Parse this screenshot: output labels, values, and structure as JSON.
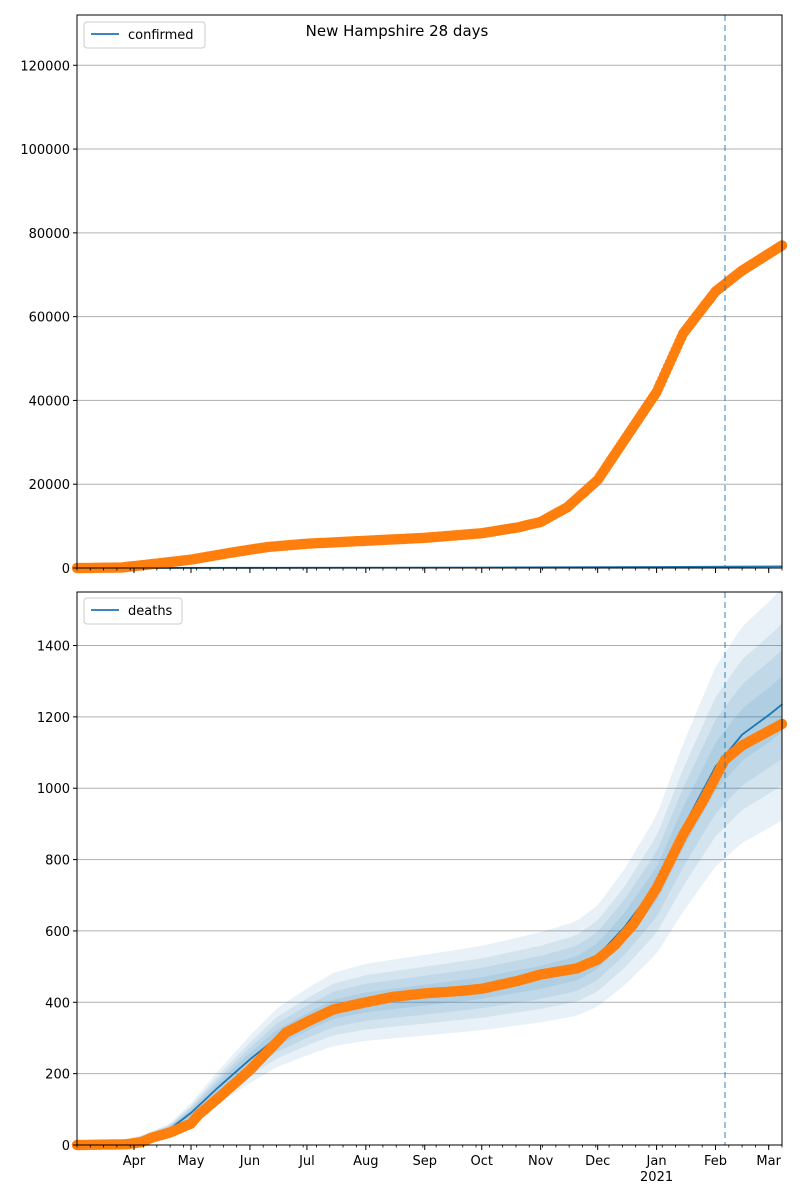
{
  "title": "New Hampshire 28 days",
  "colors": {
    "model": "#1f77b4",
    "observed": "#ff7f0e",
    "band": "#1f77b4",
    "grid": "#b0b0b0"
  },
  "x_axis": {
    "start": "2020-03-02",
    "end": "2021-03-08",
    "months": [
      {
        "label": "Apr",
        "date": "2020-04-01"
      },
      {
        "label": "May",
        "date": "2020-05-01"
      },
      {
        "label": "Jun",
        "date": "2020-06-01"
      },
      {
        "label": "Jul",
        "date": "2020-07-01"
      },
      {
        "label": "Aug",
        "date": "2020-08-01"
      },
      {
        "label": "Sep",
        "date": "2020-09-01"
      },
      {
        "label": "Oct",
        "date": "2020-10-01"
      },
      {
        "label": "Nov",
        "date": "2020-11-01"
      },
      {
        "label": "Dec",
        "date": "2020-12-01"
      },
      {
        "label": "Jan",
        "date": "2021-01-01"
      },
      {
        "label": "Feb",
        "date": "2021-02-01"
      },
      {
        "label": "Mar",
        "date": "2021-03-01"
      }
    ],
    "year_label": {
      "label": "2021",
      "date": "2021-01-01"
    },
    "forecast_marker": "2021-02-06"
  },
  "chart_data": [
    {
      "type": "line",
      "legend": "confirmed",
      "legend_position": "upper-left",
      "grid": true,
      "ylim": [
        0,
        132000
      ],
      "yticks": [
        0,
        20000,
        40000,
        60000,
        80000,
        100000,
        120000
      ],
      "model_series": {
        "name": "confirmed",
        "points": [
          [
            "2020-03-02",
            0
          ],
          [
            "2020-06-01",
            40
          ],
          [
            "2020-10-01",
            120
          ],
          [
            "2021-01-01",
            250
          ],
          [
            "2021-02-06",
            330
          ],
          [
            "2021-03-08",
            380
          ]
        ]
      },
      "observed_series": {
        "points": [
          [
            "2020-03-02",
            0
          ],
          [
            "2020-03-25",
            100
          ],
          [
            "2020-04-10",
            900
          ],
          [
            "2020-05-01",
            2000
          ],
          [
            "2020-05-20",
            3500
          ],
          [
            "2020-06-10",
            5000
          ],
          [
            "2020-07-01",
            5800
          ],
          [
            "2020-08-01",
            6500
          ],
          [
            "2020-09-01",
            7200
          ],
          [
            "2020-10-01",
            8300
          ],
          [
            "2020-10-20",
            9700
          ],
          [
            "2020-11-01",
            11000
          ],
          [
            "2020-11-15",
            14500
          ],
          [
            "2020-12-01",
            21000
          ],
          [
            "2020-12-15",
            30500
          ],
          [
            "2021-01-01",
            42000
          ],
          [
            "2021-01-15",
            56000
          ],
          [
            "2021-02-01",
            66000
          ],
          [
            "2021-02-15",
            71000
          ],
          [
            "2021-03-08",
            77000
          ]
        ]
      }
    },
    {
      "type": "line",
      "legend": "deaths",
      "legend_position": "upper-left",
      "grid": true,
      "ylim": [
        0,
        1550
      ],
      "yticks": [
        0,
        200,
        400,
        600,
        800,
        1000,
        1200,
        1400
      ],
      "model_series": {
        "name": "deaths",
        "points": [
          [
            "2020-03-02",
            0
          ],
          [
            "2020-03-20",
            3
          ],
          [
            "2020-04-05",
            18
          ],
          [
            "2020-04-20",
            45
          ],
          [
            "2020-05-01",
            90
          ],
          [
            "2020-05-15",
            160
          ],
          [
            "2020-06-01",
            240
          ],
          [
            "2020-06-15",
            300
          ],
          [
            "2020-07-01",
            345
          ],
          [
            "2020-07-15",
            380
          ],
          [
            "2020-08-01",
            400
          ],
          [
            "2020-09-01",
            420
          ],
          [
            "2020-10-01",
            440
          ],
          [
            "2020-11-01",
            470
          ],
          [
            "2020-11-20",
            495
          ],
          [
            "2020-12-01",
            530
          ],
          [
            "2020-12-15",
            610
          ],
          [
            "2021-01-01",
            730
          ],
          [
            "2021-01-15",
            890
          ],
          [
            "2021-02-01",
            1060
          ],
          [
            "2021-02-15",
            1150
          ],
          [
            "2021-03-01",
            1205
          ],
          [
            "2021-03-08",
            1235
          ]
        ]
      },
      "band_spread": [
        0.06,
        0.12,
        0.18,
        0.26
      ],
      "observed_series": {
        "points": [
          [
            "2020-03-02",
            0
          ],
          [
            "2020-03-28",
            2
          ],
          [
            "2020-04-05",
            8
          ],
          [
            "2020-04-10",
            20
          ],
          [
            "2020-04-20",
            35
          ],
          [
            "2020-05-01",
            60
          ],
          [
            "2020-05-05",
            85
          ],
          [
            "2020-05-15",
            130
          ],
          [
            "2020-06-01",
            210
          ],
          [
            "2020-06-10",
            260
          ],
          [
            "2020-06-20",
            315
          ],
          [
            "2020-07-01",
            345
          ],
          [
            "2020-07-15",
            380
          ],
          [
            "2020-08-01",
            400
          ],
          [
            "2020-08-15",
            415
          ],
          [
            "2020-09-01",
            425
          ],
          [
            "2020-09-20",
            432
          ],
          [
            "2020-10-01",
            438
          ],
          [
            "2020-10-20",
            460
          ],
          [
            "2020-11-01",
            478
          ],
          [
            "2020-11-20",
            495
          ],
          [
            "2020-12-01",
            520
          ],
          [
            "2020-12-10",
            560
          ],
          [
            "2020-12-20",
            620
          ],
          [
            "2021-01-01",
            720
          ],
          [
            "2021-01-15",
            870
          ],
          [
            "2021-01-25",
            960
          ],
          [
            "2021-02-06",
            1080
          ],
          [
            "2021-02-15",
            1120
          ],
          [
            "2021-03-01",
            1160
          ],
          [
            "2021-03-08",
            1180
          ]
        ]
      }
    }
  ]
}
